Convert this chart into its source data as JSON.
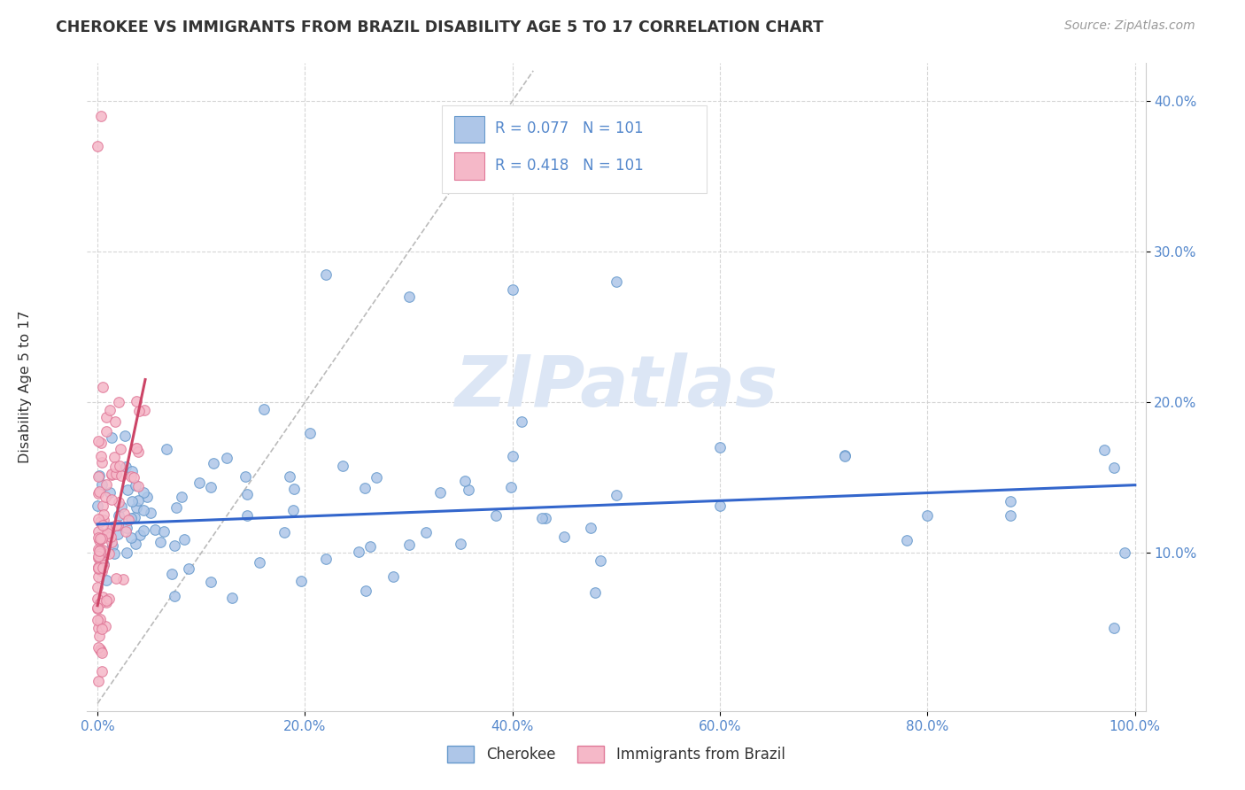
{
  "title": "CHEROKEE VS IMMIGRANTS FROM BRAZIL DISABILITY AGE 5 TO 17 CORRELATION CHART",
  "source": "Source: ZipAtlas.com",
  "ylabel": "Disability Age 5 to 17",
  "legend_labels": [
    "Cherokee",
    "Immigrants from Brazil"
  ],
  "r_cherokee": 0.077,
  "n_cherokee": 101,
  "r_brazil": 0.418,
  "n_brazil": 101,
  "cherokee_fill": "#aec6e8",
  "cherokee_edge": "#6699cc",
  "brazil_fill": "#f5b8c8",
  "brazil_edge": "#e07898",
  "cherokee_line_color": "#3366cc",
  "brazil_line_color": "#cc4466",
  "diagonal_color": "#bbbbbb",
  "background_color": "#ffffff",
  "grid_color": "#cccccc",
  "title_color": "#333333",
  "source_color": "#999999",
  "watermark_color": "#dce6f5",
  "tick_color": "#5588cc",
  "xlim": [
    0.0,
    1.0
  ],
  "ylim": [
    0.0,
    0.42
  ],
  "x_ticks": [
    0.0,
    0.2,
    0.4,
    0.6,
    0.8,
    1.0
  ],
  "x_tick_labels": [
    "0.0%",
    "20.0%",
    "40.0%",
    "60.0%",
    "80.0%",
    "100.0%"
  ],
  "y_ticks": [
    0.1,
    0.2,
    0.3,
    0.4
  ],
  "y_tick_labels": [
    "10.0%",
    "20.0%",
    "30.0%",
    "40.0%"
  ],
  "cherokee_line_x": [
    0.0,
    1.0
  ],
  "cherokee_line_y": [
    0.119,
    0.145
  ],
  "brazil_line_x": [
    0.0,
    0.046
  ],
  "brazil_line_y": [
    0.065,
    0.215
  ]
}
